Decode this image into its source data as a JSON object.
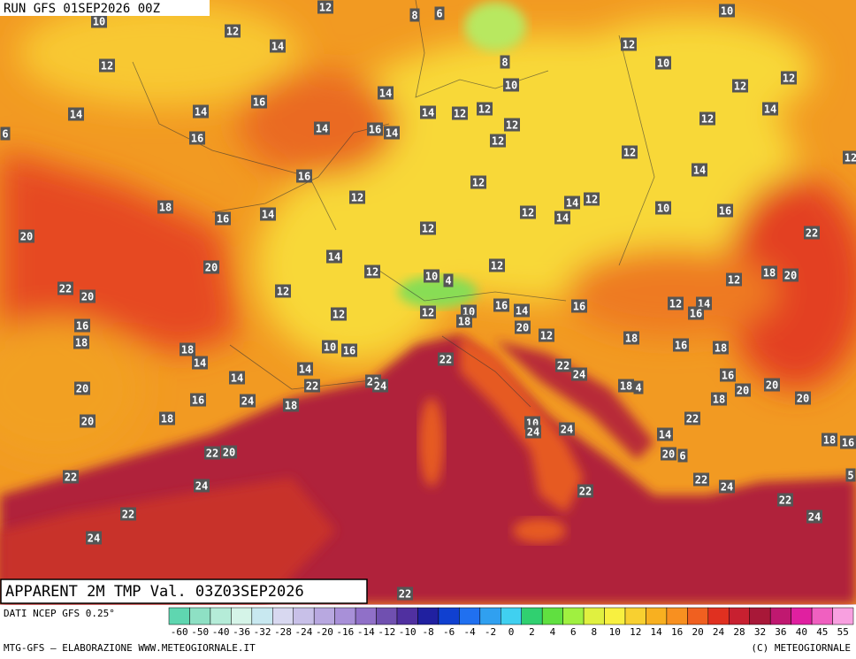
{
  "header": {
    "run": "RUN GFS 01SEP2026 00Z"
  },
  "title": "APPARENT 2M TMP Val. 03Z03SEP2026",
  "source": "DATI NCEP GFS 0.25°",
  "credit": "MTG-GFS — ELABORAZIONE WWW.METEOGIORNALE.IT",
  "copyright": "(C) METEOGIORNALE",
  "colorbar": {
    "labels": [
      -60,
      -50,
      -40,
      -36,
      -32,
      -28,
      -24,
      -20,
      -16,
      -14,
      -12,
      -10,
      -8,
      -6,
      -4,
      -2,
      0,
      2,
      4,
      6,
      8,
      10,
      12,
      14,
      16,
      20,
      24,
      28,
      32,
      36,
      40,
      45,
      55
    ],
    "colors": [
      "#5fd6b0",
      "#8ee0c4",
      "#b5ecd8",
      "#d5f4e8",
      "#c8e8f0",
      "#d8d8f0",
      "#c8c0e8",
      "#b8a8e0",
      "#a890d8",
      "#9070c8",
      "#7050b0",
      "#5030a0",
      "#2020a0",
      "#1040d0",
      "#2070f0",
      "#30a0f0",
      "#40d0f0",
      "#30d070",
      "#60e040",
      "#a0f040",
      "#e0f040",
      "#f8f040",
      "#f8d030",
      "#f8b020",
      "#f89020",
      "#f06020",
      "#e03020",
      "#c82030",
      "#a81838",
      "#c01870",
      "#e020a0",
      "#f060c0",
      "#f8a0e0"
    ]
  },
  "map": {
    "labels": [
      12,
      10,
      8,
      6,
      10,
      12,
      14,
      12,
      12,
      8,
      10,
      10,
      12,
      12,
      14,
      16,
      14,
      14,
      14,
      12,
      12,
      14,
      12,
      16,
      14,
      14,
      16,
      12,
      12,
      6,
      12,
      12,
      16,
      12,
      14,
      12,
      14,
      12,
      18,
      14,
      16,
      12,
      14,
      10,
      16,
      20,
      12,
      22,
      14,
      20,
      12,
      12,
      18,
      20,
      12,
      22,
      20,
      12,
      10,
      4,
      12,
      10,
      16,
      14,
      16,
      12,
      14,
      16,
      12,
      16,
      18,
      20,
      12,
      18,
      18,
      18,
      10,
      16,
      16,
      18,
      14,
      22,
      22,
      24,
      14,
      14,
      22,
      20,
      24,
      18,
      4,
      16,
      20,
      20,
      20,
      20,
      16,
      24,
      18,
      18,
      22,
      20,
      18,
      10,
      24,
      24,
      14,
      18,
      16,
      22,
      20,
      20,
      6,
      22,
      22,
      24,
      5,
      24,
      22,
      22,
      22,
      24,
      24,
      22
    ]
  }
}
